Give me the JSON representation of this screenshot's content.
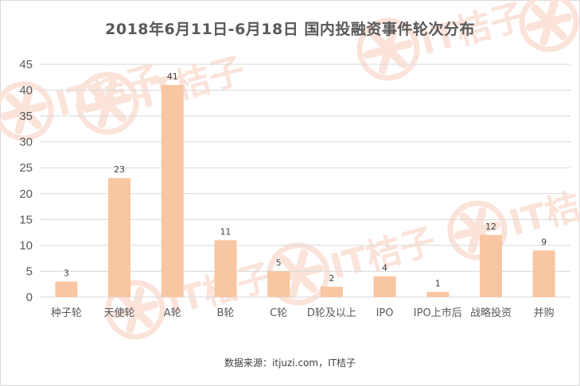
{
  "chart_data": {
    "type": "bar",
    "title": "2018年6月11日-6月18日 国内投融资事件轮次分布",
    "categories": [
      "种子轮",
      "天使轮",
      "A轮",
      "B轮",
      "C轮",
      "D轮及以上",
      "IPO",
      "IPO上市后",
      "战略投资",
      "并购"
    ],
    "values": [
      3,
      23,
      41,
      11,
      5,
      2,
      4,
      1,
      12,
      9
    ],
    "ylim": [
      0,
      45
    ],
    "yticks": [
      0,
      5,
      10,
      15,
      20,
      25,
      30,
      35,
      40,
      45
    ],
    "grid": true,
    "xlabel": "",
    "ylabel": "",
    "bar_color": "#f8c6a2",
    "source": "数据来源：itjuzi.com，IT桔子"
  },
  "watermark": "IT桔子",
  "colors": {
    "watermark": "#fbe3da",
    "grid": "#d9d9d9",
    "text": "#404040"
  }
}
